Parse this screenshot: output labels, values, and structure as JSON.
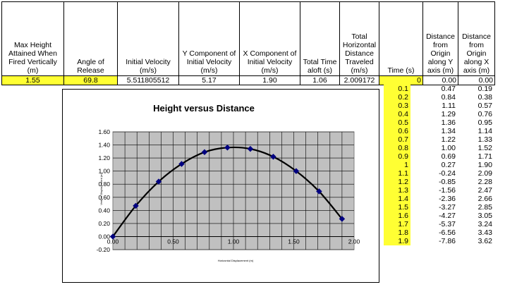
{
  "headers": [
    "Max Height Attained When Fired Vertically (m)",
    "Angle of Release",
    "Initial Velocity (m/s)",
    "Y Component of Initial Velocity (m/s)",
    "X Component of Initial Velocity (m/s)",
    "Total Time aloft (s)",
    "Total Horizontal Distance Traveled (m/s)",
    "Time (s)",
    "Distance from Origin along Y axis (m)",
    "Distance from Origin along X axis (m)"
  ],
  "values": [
    "1.55",
    "69.8",
    "5.511805512",
    "5.17",
    "1.90",
    "1.06",
    "2.009172",
    "0",
    "0.00",
    "0.00"
  ],
  "rows": [
    {
      "t": "0.1",
      "y": "0.47",
      "x": "0.19"
    },
    {
      "t": "0.2",
      "y": "0.84",
      "x": "0.38"
    },
    {
      "t": "0.3",
      "y": "1.11",
      "x": "0.57"
    },
    {
      "t": "0.4",
      "y": "1.29",
      "x": "0.76"
    },
    {
      "t": "0.5",
      "y": "1.36",
      "x": "0.95"
    },
    {
      "t": "0.6",
      "y": "1.34",
      "x": "1.14"
    },
    {
      "t": "0.7",
      "y": "1.22",
      "x": "1.33"
    },
    {
      "t": "0.8",
      "y": "1.00",
      "x": "1.52"
    },
    {
      "t": "0.9",
      "y": "0.69",
      "x": "1.71"
    },
    {
      "t": "1",
      "y": "0.27",
      "x": "1.90"
    },
    {
      "t": "1.1",
      "y": "-0.24",
      "x": "2.09"
    },
    {
      "t": "1.2",
      "y": "-0.85",
      "x": "2.28"
    },
    {
      "t": "1.3",
      "y": "-1.56",
      "x": "2.47"
    },
    {
      "t": "1.4",
      "y": "-2.36",
      "x": "2.66"
    },
    {
      "t": "1.5",
      "y": "-3.27",
      "x": "2.85"
    },
    {
      "t": "1.6",
      "y": "-4.27",
      "x": "3.05"
    },
    {
      "t": "1.7",
      "y": "-5.37",
      "x": "3.24"
    },
    {
      "t": "1.8",
      "y": "-6.56",
      "x": "3.43"
    },
    {
      "t": "1.9",
      "y": "-7.86",
      "x": "3.62"
    }
  ],
  "colors": {
    "highlight": "#ffff33",
    "plot_area": "#c0c0c0",
    "marker": "#000080"
  },
  "chart_data": {
    "type": "scatter",
    "title": "Height versus Distance",
    "xlabel": "Horizontal Displacement (m)",
    "ylabel": "Vertical Displacement (m)",
    "xlim": [
      0,
      2
    ],
    "ylim": [
      -0.2,
      1.6
    ],
    "x_ticks": [
      "0.00",
      "0.50",
      "1.00",
      "1.50",
      "2.00"
    ],
    "y_ticks": [
      "-0.20",
      "0.00",
      "0.20",
      "0.40",
      "0.60",
      "0.80",
      "1.00",
      "1.20",
      "1.40",
      "1.60"
    ],
    "grid": true,
    "legend": "none",
    "series": [
      {
        "x": [
          0.0,
          0.19,
          0.38,
          0.57,
          0.76,
          0.95,
          1.14,
          1.33,
          1.52,
          1.71,
          1.9
        ],
        "y": [
          0.0,
          0.47,
          0.84,
          1.11,
          1.29,
          1.36,
          1.34,
          1.22,
          1.0,
          0.69,
          0.27
        ]
      }
    ]
  }
}
